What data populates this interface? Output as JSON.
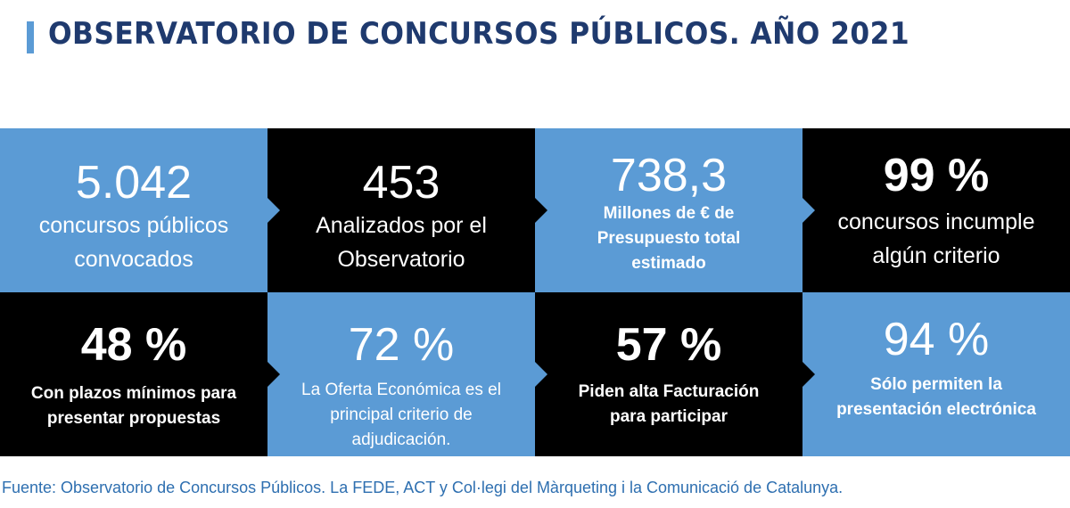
{
  "header": {
    "title": "OBSERVATORIO DE CONCURSOS PÚBLICOS. AÑO 2021"
  },
  "colors": {
    "blue": "#5b9bd5",
    "black": "#000000",
    "title": "#1f3a6e",
    "source": "#2e6fb0"
  },
  "tiles": [
    {
      "number": "5.042",
      "text": "concursos públicos convocados"
    },
    {
      "number": "453",
      "text": "Analizados por el Observatorio"
    },
    {
      "number": "738,3",
      "text": "Millones de € de Presupuesto total estimado"
    },
    {
      "number": "99 %",
      "text": "concursos incumple algún criterio"
    },
    {
      "number": "48 %",
      "text": "Con plazos mínimos para presentar propuestas"
    },
    {
      "number": "72 %",
      "text": "La Oferta Económica es el principal criterio de adjudicación."
    },
    {
      "number": "57 %",
      "text": "Piden alta Facturación para participar"
    },
    {
      "number": "94 %",
      "text": "Sólo permiten la presentación electrónica"
    }
  ],
  "footer": {
    "source": "Fuente: Observatorio de Concursos Públicos. La FEDE, ACT y Col·legi del Màrqueting i la Comunicació de Catalunya."
  }
}
